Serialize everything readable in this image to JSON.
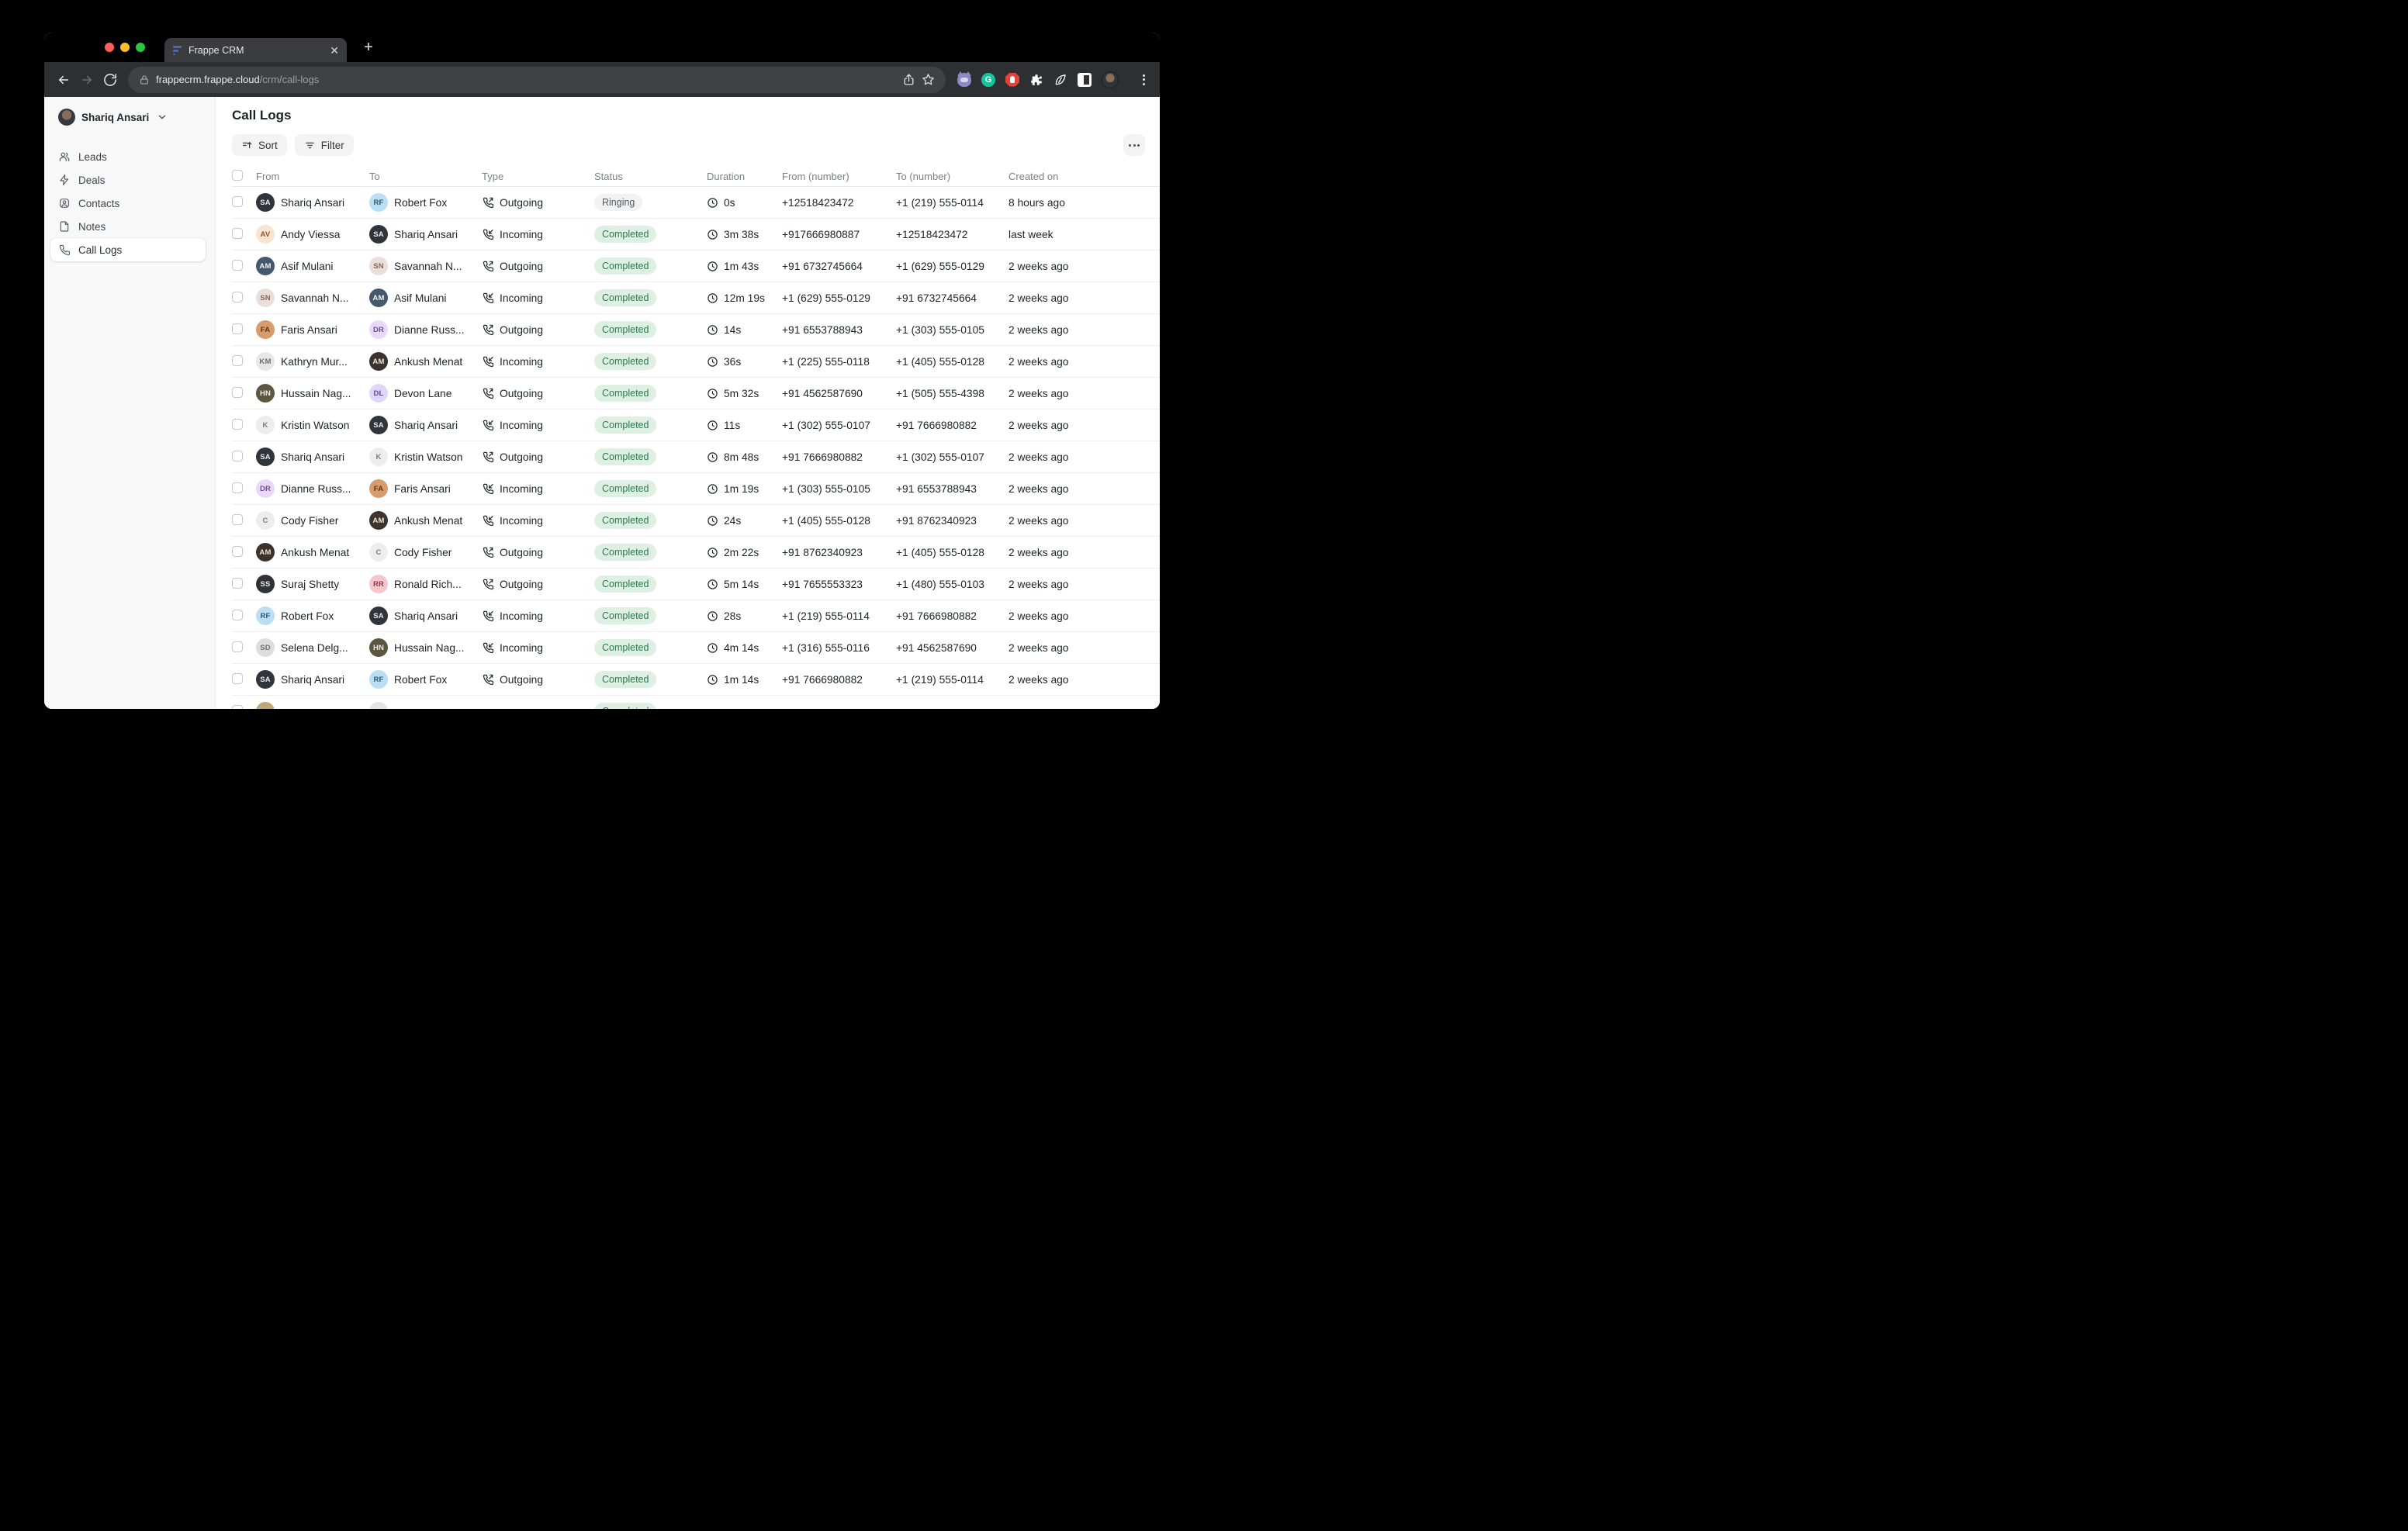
{
  "browser": {
    "tab_title": "Frappe CRM",
    "url_host": "frappecrm.frappe.cloud",
    "url_path": "/crm/call-logs",
    "new_tab_label": "+",
    "close_tab_label": "✕"
  },
  "sidebar": {
    "user_name": "Shariq Ansari",
    "items": [
      {
        "label": "Leads",
        "icon": "leads-icon",
        "active": false
      },
      {
        "label": "Deals",
        "icon": "deals-icon",
        "active": false
      },
      {
        "label": "Contacts",
        "icon": "contacts-icon",
        "active": false
      },
      {
        "label": "Notes",
        "icon": "notes-icon",
        "active": false
      },
      {
        "label": "Call Logs",
        "icon": "call-logs-icon",
        "active": true
      }
    ]
  },
  "page": {
    "title": "Call Logs",
    "sort_label": "Sort",
    "filter_label": "Filter"
  },
  "status_colors": {
    "Ringing": {
      "bg": "#f2f2f3",
      "fg": "#55585c"
    },
    "Completed": {
      "bg": "#def0e3",
      "fg": "#2a7a4d"
    }
  },
  "table": {
    "columns": [
      "From",
      "To",
      "Type",
      "Status",
      "Duration",
      "From (number)",
      "To (number)",
      "Created on"
    ],
    "rows": [
      {
        "from": {
          "name": "Shariq Ansari",
          "initials": "SA",
          "bg": "#30353c",
          "fg": "#e8e8e8"
        },
        "to": {
          "name": "Robert Fox",
          "initials": "RF",
          "bg": "#badff5",
          "fg": "#2b5a74"
        },
        "type": "Outgoing",
        "status": "Ringing",
        "duration": "0s",
        "from_number": "+12518423472",
        "to_number": "+1 (219) 555-0114",
        "created": "8 hours ago"
      },
      {
        "from": {
          "name": "Andy Viessa",
          "initials": "AV",
          "bg": "#f9e3d1",
          "fg": "#8a5a33"
        },
        "to": {
          "name": "Shariq Ansari",
          "initials": "SA",
          "bg": "#30353c",
          "fg": "#e8e8e8"
        },
        "type": "Incoming",
        "status": "Completed",
        "duration": "3m 38s",
        "from_number": "+917666980887",
        "to_number": "+12518423472",
        "created": "last week"
      },
      {
        "from": {
          "name": "Asif Mulani",
          "initials": "AM",
          "bg": "#46586b",
          "fg": "#eef2f5"
        },
        "to": {
          "name": "Savannah N...",
          "initials": "SN",
          "bg": "#e9deda",
          "fg": "#87675c"
        },
        "type": "Outgoing",
        "status": "Completed",
        "duration": "1m 43s",
        "from_number": "+91 6732745664",
        "to_number": "+1 (629) 555-0129",
        "created": "2 weeks ago"
      },
      {
        "from": {
          "name": "Savannah N...",
          "initials": "SN",
          "bg": "#e9deda",
          "fg": "#87675c"
        },
        "to": {
          "name": "Asif Mulani",
          "initials": "AM",
          "bg": "#46586b",
          "fg": "#eef2f5"
        },
        "type": "Incoming",
        "status": "Completed",
        "duration": "12m 19s",
        "from_number": "+1 (629) 555-0129",
        "to_number": "+91 6732745664",
        "created": "2 weeks ago"
      },
      {
        "from": {
          "name": "Faris Ansari",
          "initials": "FA",
          "bg": "#d79b6e",
          "fg": "#5c3317"
        },
        "to": {
          "name": "Dianne Russ...",
          "initials": "DR",
          "bg": "#e9d8f7",
          "fg": "#6d4d8e"
        },
        "type": "Outgoing",
        "status": "Completed",
        "duration": "14s",
        "from_number": "+91 6553788943",
        "to_number": "+1 (303) 555-0105",
        "created": "2 weeks ago"
      },
      {
        "from": {
          "name": "Kathryn Mur...",
          "initials": "KM",
          "bg": "#e7e7e7",
          "fg": "#6f6f6f"
        },
        "to": {
          "name": "Ankush Menat",
          "initials": "AM",
          "bg": "#3b332c",
          "fg": "#e9e2d9"
        },
        "type": "Incoming",
        "status": "Completed",
        "duration": "36s",
        "from_number": "+1 (225) 555-0118",
        "to_number": "+1 (405) 555-0128",
        "created": "2 weeks ago"
      },
      {
        "from": {
          "name": "Hussain Nag...",
          "initials": "HN",
          "bg": "#5c5741",
          "fg": "#efece2"
        },
        "to": {
          "name": "Devon Lane",
          "initials": "DL",
          "bg": "#ded7fa",
          "fg": "#584a9e"
        },
        "type": "Outgoing",
        "status": "Completed",
        "duration": "5m 32s",
        "from_number": "+91 4562587690",
        "to_number": "+1 (505) 555-4398",
        "created": "2 weeks ago"
      },
      {
        "from": {
          "name": "Kristin Watson",
          "initials": "K",
          "bg": "#ededed",
          "fg": "#7e7e7e"
        },
        "to": {
          "name": "Shariq Ansari",
          "initials": "SA",
          "bg": "#30353c",
          "fg": "#e8e8e8"
        },
        "type": "Incoming",
        "status": "Completed",
        "duration": "11s",
        "from_number": "+1 (302) 555-0107",
        "to_number": "+91 7666980882",
        "created": "2 weeks ago"
      },
      {
        "from": {
          "name": "Shariq Ansari",
          "initials": "SA",
          "bg": "#30353c",
          "fg": "#e8e8e8"
        },
        "to": {
          "name": "Kristin Watson",
          "initials": "K",
          "bg": "#ededed",
          "fg": "#7e7e7e"
        },
        "type": "Outgoing",
        "status": "Completed",
        "duration": "8m 48s",
        "from_number": "+91 7666980882",
        "to_number": "+1 (302) 555-0107",
        "created": "2 weeks ago"
      },
      {
        "from": {
          "name": "Dianne Russ...",
          "initials": "DR",
          "bg": "#e9d8f7",
          "fg": "#6d4d8e"
        },
        "to": {
          "name": "Faris Ansari",
          "initials": "FA",
          "bg": "#d79b6e",
          "fg": "#5c3317"
        },
        "type": "Incoming",
        "status": "Completed",
        "duration": "1m 19s",
        "from_number": "+1 (303) 555-0105",
        "to_number": "+91 6553788943",
        "created": "2 weeks ago"
      },
      {
        "from": {
          "name": "Cody Fisher",
          "initials": "C",
          "bg": "#ededed",
          "fg": "#7e7e7e"
        },
        "to": {
          "name": "Ankush Menat",
          "initials": "AM",
          "bg": "#3b332c",
          "fg": "#e9e2d9"
        },
        "type": "Incoming",
        "status": "Completed",
        "duration": "24s",
        "from_number": "+1 (405) 555-0128",
        "to_number": "+91 8762340923",
        "created": "2 weeks ago"
      },
      {
        "from": {
          "name": "Ankush Menat",
          "initials": "AM",
          "bg": "#3b332c",
          "fg": "#e9e2d9"
        },
        "to": {
          "name": "Cody Fisher",
          "initials": "C",
          "bg": "#ededed",
          "fg": "#7e7e7e"
        },
        "type": "Outgoing",
        "status": "Completed",
        "duration": "2m 22s",
        "from_number": "+91 8762340923",
        "to_number": "+1 (405) 555-0128",
        "created": "2 weeks ago"
      },
      {
        "from": {
          "name": "Suraj Shetty",
          "initials": "SS",
          "bg": "#2f3338",
          "fg": "#e8e8e8"
        },
        "to": {
          "name": "Ronald Rich...",
          "initials": "RR",
          "bg": "#f5c6cc",
          "fg": "#8c3c49"
        },
        "type": "Outgoing",
        "status": "Completed",
        "duration": "5m 14s",
        "from_number": "+91 7655553323",
        "to_number": "+1 (480) 555-0103",
        "created": "2 weeks ago"
      },
      {
        "from": {
          "name": "Robert Fox",
          "initials": "RF",
          "bg": "#badff5",
          "fg": "#2b5a74"
        },
        "to": {
          "name": "Shariq Ansari",
          "initials": "SA",
          "bg": "#30353c",
          "fg": "#e8e8e8"
        },
        "type": "Incoming",
        "status": "Completed",
        "duration": "28s",
        "from_number": "+1 (219) 555-0114",
        "to_number": "+91 7666980882",
        "created": "2 weeks ago"
      },
      {
        "from": {
          "name": "Selena Delg...",
          "initials": "SD",
          "bg": "#dddddd",
          "fg": "#6f6f6f"
        },
        "to": {
          "name": "Hussain Nag...",
          "initials": "HN",
          "bg": "#5c5741",
          "fg": "#efece2"
        },
        "type": "Incoming",
        "status": "Completed",
        "duration": "4m 14s",
        "from_number": "+1 (316) 555-0116",
        "to_number": "+91 4562587690",
        "created": "2 weeks ago"
      },
      {
        "from": {
          "name": "Shariq Ansari",
          "initials": "SA",
          "bg": "#30353c",
          "fg": "#e8e8e8"
        },
        "to": {
          "name": "Robert Fox",
          "initials": "RF",
          "bg": "#badff5",
          "fg": "#2b5a74"
        },
        "type": "Outgoing",
        "status": "Completed",
        "duration": "1m 14s",
        "from_number": "+91 7666980882",
        "to_number": "+1 (219) 555-0114",
        "created": "2 weeks ago"
      }
    ],
    "partial_row": {
      "from": {
        "name": "",
        "initials": "",
        "bg": "#c2a877",
        "fg": "#5a4a22"
      },
      "to": {
        "name": "",
        "initials": "",
        "bg": "#e5e5e5",
        "fg": "#7e7e7e"
      },
      "type": "",
      "status": "Completed",
      "duration": "",
      "from_number": "",
      "to_number": "",
      "created": ""
    }
  }
}
